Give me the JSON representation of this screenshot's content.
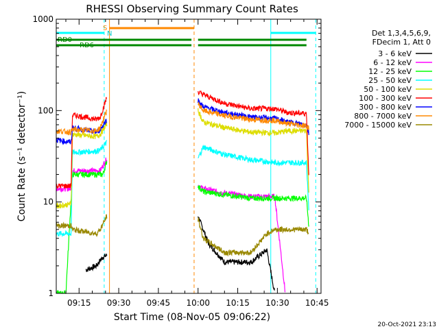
{
  "chart_data": {
    "type": "line",
    "title": "RHESSI Observing Summary Count Rates",
    "xlabel": "Start Time (08-Nov-05 09:06:22)",
    "ylabel": "Count Rate (s⁻¹ detector⁻¹)",
    "yscale": "log",
    "ylim": [
      1,
      1000
    ],
    "xlim_minutes_after_09_00": [
      6.37,
      46.5
    ],
    "x_ticks": [
      {
        "label": "09:15",
        "t": 15
      },
      {
        "label": "09:30",
        "t": 30
      },
      {
        "label": "09:45",
        "t": 45
      },
      {
        "label": "10:00",
        "t": 60
      },
      {
        "label": "10:15",
        "t": 75
      },
      {
        "label": "10:30",
        "t": 90
      },
      {
        "label": "10:45",
        "t": 105
      }
    ],
    "y_ticks": [
      {
        "label": "1",
        "v": 1
      },
      {
        "label": "10",
        "v": 10
      },
      {
        "label": "100",
        "v": 100
      },
      {
        "label": "1000",
        "v": 1000
      }
    ],
    "legend_header": [
      "Det 1,3,4,5,6,9,",
      "FDecim 1, Att 0"
    ],
    "legend_position": "right",
    "series": [
      {
        "name": "3 - 6 keV",
        "color": "#000000",
        "points": [
          [
            6.4,
            null
          ],
          [
            17,
            null
          ],
          [
            17.5,
            1.8
          ],
          [
            21.5,
            2.0
          ],
          [
            24,
            2.5
          ],
          [
            25.5,
            2.6
          ]
        ],
        "points2": [
          [
            60,
            7
          ],
          [
            64,
            3.5
          ],
          [
            70,
            2.2
          ],
          [
            80,
            2.2
          ],
          [
            86,
            3.0
          ],
          [
            89,
            1.0
          ]
        ]
      },
      {
        "name": "6 - 12 keV",
        "color": "#ff00ff",
        "points": [
          [
            6.4,
            14
          ],
          [
            12,
            14
          ],
          [
            12.5,
            22
          ],
          [
            21.5,
            22
          ],
          [
            23,
            22
          ],
          [
            25.5,
            30
          ]
        ],
        "points2": [
          [
            60,
            15
          ],
          [
            62,
            14
          ],
          [
            70,
            12.5
          ],
          [
            80,
            11.5
          ],
          [
            89,
            11.5
          ],
          [
            93,
            1.0
          ]
        ]
      },
      {
        "name": "12 - 25 keV",
        "color": "#00ff00",
        "points": [
          [
            6.4,
            1.0
          ],
          [
            10,
            1.0
          ],
          [
            12.5,
            20
          ],
          [
            21.5,
            20
          ],
          [
            24,
            20
          ],
          [
            25.5,
            28
          ]
        ],
        "points2": [
          [
            60,
            15
          ],
          [
            62,
            13
          ],
          [
            70,
            12
          ],
          [
            80,
            11
          ],
          [
            89,
            11
          ],
          [
            94,
            11
          ],
          [
            101,
            11
          ],
          [
            102,
            5
          ]
        ]
      },
      {
        "name": "25 - 50 keV",
        "color": "#00ffff",
        "points": [
          [
            6.4,
            4.5
          ],
          [
            12,
            4.5
          ],
          [
            12.5,
            35
          ],
          [
            21.5,
            36
          ],
          [
            23,
            37
          ],
          [
            25.5,
            45
          ]
        ],
        "points2": [
          [
            60,
            30
          ],
          [
            62,
            40
          ],
          [
            70,
            33
          ],
          [
            80,
            29
          ],
          [
            89,
            27
          ],
          [
            94,
            27
          ],
          [
            101,
            27
          ],
          [
            102,
            7
          ]
        ]
      },
      {
        "name": "50 - 100 keV",
        "color": "#dddd00",
        "points": [
          [
            6.4,
            9
          ],
          [
            12,
            9.5
          ],
          [
            12.5,
            55
          ],
          [
            21.5,
            52
          ],
          [
            23,
            55
          ],
          [
            25.5,
            72
          ]
        ],
        "points2": [
          [
            60,
            100
          ],
          [
            62,
            75
          ],
          [
            70,
            65
          ],
          [
            80,
            58
          ],
          [
            89,
            57
          ],
          [
            94,
            60
          ],
          [
            101,
            60
          ],
          [
            102,
            10
          ]
        ]
      },
      {
        "name": "100 - 300 keV",
        "color": "#ff0000",
        "points": [
          [
            6.4,
            15
          ],
          [
            12,
            15
          ],
          [
            12.5,
            90
          ],
          [
            21.5,
            80
          ],
          [
            23,
            85
          ],
          [
            25.5,
            140
          ]
        ],
        "points2": [
          [
            60,
            160
          ],
          [
            62,
            150
          ],
          [
            70,
            120
          ],
          [
            80,
            105
          ],
          [
            89,
            105
          ],
          [
            94,
            95
          ],
          [
            101,
            93
          ],
          [
            102,
            16
          ]
        ]
      },
      {
        "name": "300 - 800 keV",
        "color": "#0000ff",
        "points": [
          [
            6.4,
            48
          ],
          [
            12,
            45
          ],
          [
            12.5,
            65
          ],
          [
            21.5,
            58
          ],
          [
            23,
            62
          ],
          [
            25.5,
            80
          ]
        ],
        "points2": [
          [
            60,
            130
          ],
          [
            62,
            110
          ],
          [
            70,
            95
          ],
          [
            80,
            85
          ],
          [
            89,
            82
          ],
          [
            94,
            75
          ],
          [
            101,
            70
          ],
          [
            102,
            55
          ]
        ]
      },
      {
        "name": "800 - 7000 keV",
        "color": "#ff8800",
        "points": [
          [
            6.4,
            60
          ],
          [
            12,
            58
          ],
          [
            12.5,
            62
          ],
          [
            21.5,
            60
          ],
          [
            23,
            65
          ],
          [
            25.5,
            100
          ]
        ],
        "points2": [
          [
            60,
            120
          ],
          [
            62,
            100
          ],
          [
            70,
            88
          ],
          [
            80,
            80
          ],
          [
            89,
            78
          ],
          [
            94,
            72
          ],
          [
            101,
            68
          ],
          [
            102,
            65
          ]
        ]
      },
      {
        "name": "7000 - 15000 keV",
        "color": "#998800",
        "points": [
          [
            6.4,
            5.5
          ],
          [
            12,
            5.5
          ],
          [
            12.5,
            5
          ],
          [
            21.5,
            4.5
          ],
          [
            23,
            5
          ],
          [
            25.5,
            7
          ]
        ],
        "points2": [
          [
            60,
            6.5
          ],
          [
            62,
            4
          ],
          [
            70,
            2.8
          ],
          [
            80,
            2.8
          ],
          [
            86,
            4.5
          ],
          [
            89,
            5
          ],
          [
            94,
            5
          ],
          [
            101,
            5
          ],
          [
            102,
            4.5
          ]
        ]
      }
    ],
    "annotations": [
      {
        "text": "RD0",
        "color": "#008800"
      },
      {
        "text": "RD6",
        "color": "#008800"
      },
      {
        "text": "S",
        "color": "#ff8800"
      },
      {
        "text": "N",
        "color": "#00cccc"
      }
    ],
    "flags": [
      {
        "name": "saa",
        "color": "#ff8800",
        "ranges": [
          [
            26.5,
            58.5
          ]
        ]
      },
      {
        "name": "night",
        "color": "#00ffff",
        "ranges": [
          [
            6.4,
            24.5
          ],
          [
            87.5,
            104.5
          ]
        ]
      },
      {
        "name": "decimation",
        "color": "#008800",
        "ranges": [
          [
            6.4,
            57.5
          ],
          [
            60,
            101
          ]
        ]
      }
    ],
    "vertical_lines": [
      {
        "t": 24.5,
        "color": "#00ffff",
        "dashed": true
      },
      {
        "t": 26.5,
        "color": "#ff8800",
        "dashed": false
      },
      {
        "t": 58.5,
        "color": "#ff8800",
        "dashed": true
      },
      {
        "t": 87.5,
        "color": "#00ffff",
        "dashed": false
      },
      {
        "t": 104.5,
        "color": "#00ffff",
        "dashed": true
      }
    ]
  },
  "footer": {
    "timestamp": "20-Oct-2021 23:13"
  }
}
